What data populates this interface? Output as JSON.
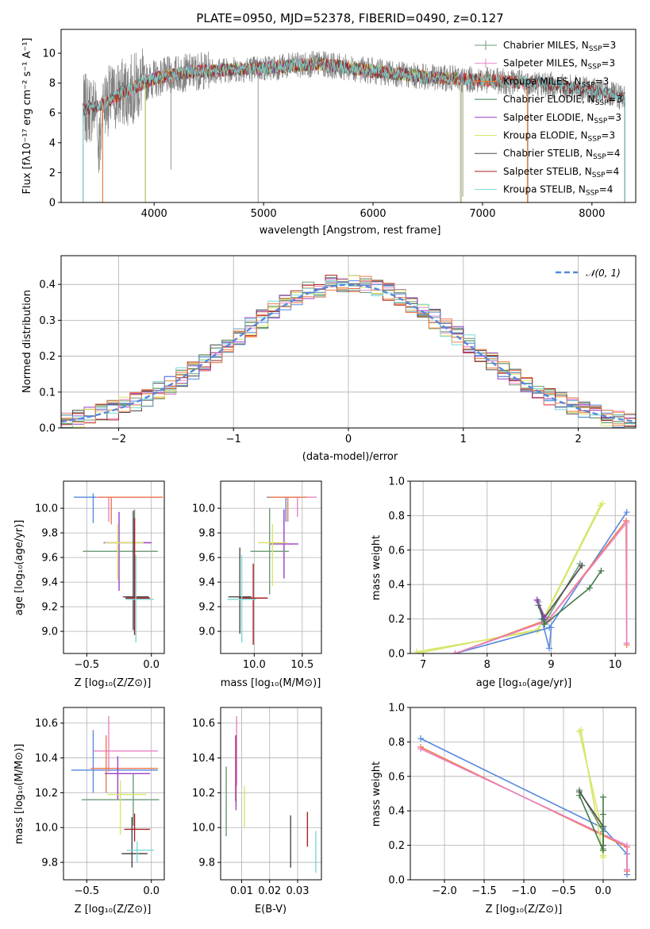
{
  "colors": {
    "chab_miles": "#6d9a76",
    "salp_miles": "#e882c6",
    "krou_miles": "#ef8231",
    "chab_elodie": "#427a48",
    "salp_elodie": "#9a3ec7",
    "krou_elodie": "#d8e56a",
    "chab_stelib": "#4a4a4a",
    "salp_stelib": "#a82020",
    "krou_stelib": "#7ad8d8",
    "blue": "#5588dd",
    "orange": "#ef7a4a",
    "data": "#808080"
  },
  "chart_data": [
    {
      "id": "spectrum",
      "type": "line",
      "title": "PLATE=0950, MJD=52378, FIBERID=0490, z=0.127",
      "xlabel": "wavelength [Angstrom, rest frame]",
      "ylabel": "Flux [fλ10⁻¹⁷ erg cm⁻² s⁻¹ A⁻¹]",
      "xlim": [
        3150,
        8400
      ],
      "ylim": [
        0,
        11.6
      ],
      "xticks": [
        4000,
        5000,
        6000,
        7000,
        8000
      ],
      "yticks": [
        0,
        2,
        4,
        6,
        8,
        10
      ],
      "legend": [
        "Chabrier MILES, N_SSP=3",
        "Salpeter MILES, N_SSP=3",
        "Kroupa MILES, N_SSP=3",
        "Chabrier ELODIE, N_SSP=3",
        "Salpeter ELODIE, N_SSP=3",
        "Kroupa ELODIE, N_SSP=3",
        "Chabrier STELIB, N_SSP=4",
        "Salpeter STELIB, N_SSP=4",
        "Kroupa STELIB, N_SSP=4"
      ],
      "legend_loc": "upper right",
      "continuum": [
        [
          3350,
          6.2
        ],
        [
          3500,
          6.5
        ],
        [
          3600,
          6.9
        ],
        [
          3700,
          7.3
        ],
        [
          3800,
          7.6
        ],
        [
          3900,
          8.0
        ],
        [
          4000,
          8.3
        ],
        [
          4200,
          8.6
        ],
        [
          4400,
          8.8
        ],
        [
          5000,
          9.0
        ],
        [
          5500,
          9.3
        ],
        [
          6000,
          8.8
        ],
        [
          6500,
          8.4
        ],
        [
          7000,
          8.2
        ],
        [
          7500,
          8.0
        ],
        [
          8000,
          7.5
        ],
        [
          8300,
          7.0
        ]
      ]
    },
    {
      "id": "residuals",
      "type": "histogram",
      "xlabel": "(data-model)/error",
      "ylabel": "Normed distribution",
      "xlim": [
        -2.5,
        2.5
      ],
      "ylim": [
        0,
        0.48
      ],
      "xticks": [
        -2,
        -1,
        0,
        1,
        2
      ],
      "yticks": [
        0.0,
        0.1,
        0.2,
        0.3,
        0.4
      ],
      "legend": [
        "𝒩(0, 1)"
      ],
      "legend_loc": "upper right",
      "bin_width": 0.1
    },
    {
      "id": "age_vs_Z",
      "type": "errorbar",
      "xlabel": "Z [log₁₀(Z/Z⊙)]",
      "ylabel": "age  [log₁₀(age/yr)]",
      "xlim": [
        -0.68,
        0.1
      ],
      "ylim": [
        8.82,
        10.22
      ],
      "xticks": [
        -0.5,
        0.0
      ],
      "yticks": [
        9.0,
        9.2,
        9.4,
        9.6,
        9.8,
        10.0
      ],
      "points": [
        {
          "c": "blue",
          "x": -0.45,
          "xe": [
            0.15,
            0.48
          ],
          "y": 10.09,
          "ye": [
            0.21,
            0.03
          ]
        },
        {
          "c": "salp_miles",
          "x": -0.33,
          "xe": [
            0.1,
            0.4
          ],
          "y": 10.09,
          "ye": [
            0.2,
            0.0
          ]
        },
        {
          "c": "orange",
          "x": -0.31,
          "xe": [
            0.1,
            0.4
          ],
          "y": 10.09,
          "ye": [
            0.22,
            0.0
          ]
        },
        {
          "c": "salp_elodie",
          "x": -0.25,
          "xe": [
            0.12,
            0.25
          ],
          "y": 9.72,
          "ye": [
            0.39,
            0.25
          ]
        },
        {
          "c": "chab_miles",
          "x": -0.13,
          "xe": [
            0.4,
            0.18
          ],
          "y": 9.65,
          "ye": [
            0.36,
            0.34
          ]
        },
        {
          "c": "krou_elodie",
          "x": -0.26,
          "xe": [
            0.1,
            0.2
          ],
          "y": 9.72,
          "ye": [
            0.3,
            0.15
          ]
        },
        {
          "c": "chab_stelib",
          "x": -0.14,
          "xe": [
            0.08,
            0.12
          ],
          "y": 9.28,
          "ye": [
            0.27,
            0.7
          ]
        },
        {
          "c": "salp_stelib",
          "x": -0.13,
          "xe": [
            0.07,
            0.12
          ],
          "y": 9.27,
          "ye": [
            0.3,
            0.65
          ]
        },
        {
          "c": "krou_stelib",
          "x": -0.12,
          "xe": [
            0.08,
            0.14
          ],
          "y": 9.26,
          "ye": [
            0.35,
            0.36
          ]
        }
      ]
    },
    {
      "id": "age_vs_mass",
      "type": "errorbar",
      "xlabel": "mass [log₁₀(M/M⊙)]",
      "ylabel": "",
      "xlim": [
        9.65,
        10.7
      ],
      "ylim": [
        8.82,
        10.22
      ],
      "xticks": [
        10.0,
        10.5
      ],
      "yticks": [
        9.0,
        9.2,
        9.4,
        9.6,
        9.8,
        10.0
      ],
      "points": [
        {
          "c": "blue",
          "x": 10.33,
          "xe": [
            0.2,
            0.2
          ],
          "y": 10.09,
          "ye": [
            0.2,
            0.0
          ]
        },
        {
          "c": "salp_miles",
          "x": 10.45,
          "xe": [
            0.2,
            0.2
          ],
          "y": 10.09,
          "ye": [
            0.16,
            0.0
          ]
        },
        {
          "c": "orange",
          "x": 10.35,
          "xe": [
            0.2,
            0.2
          ],
          "y": 10.09,
          "ye": [
            0.2,
            0.0
          ]
        },
        {
          "c": "salp_elodie",
          "x": 10.31,
          "xe": [
            0.15,
            0.15
          ],
          "y": 9.71,
          "ye": [
            0.28,
            0.28
          ]
        },
        {
          "c": "chab_miles",
          "x": 10.16,
          "xe": [
            0.2,
            0.2
          ],
          "y": 9.65,
          "ye": [
            0.35,
            0.35
          ]
        },
        {
          "c": "krou_elodie",
          "x": 10.19,
          "xe": [
            0.15,
            0.15
          ],
          "y": 9.72,
          "ye": [
            0.35,
            0.15
          ]
        },
        {
          "c": "chab_stelib",
          "x": 9.85,
          "xe": [
            0.12,
            0.12
          ],
          "y": 9.28,
          "ye": [
            0.3,
            0.4
          ]
        },
        {
          "c": "salp_stelib",
          "x": 9.99,
          "xe": [
            0.15,
            0.15
          ],
          "y": 9.27,
          "ye": [
            0.38,
            0.28
          ]
        },
        {
          "c": "krou_stelib",
          "x": 9.87,
          "xe": [
            0.15,
            0.15
          ],
          "y": 9.26,
          "ye": [
            0.35,
            0.36
          ]
        }
      ]
    },
    {
      "id": "weight_vs_age",
      "type": "line",
      "xlabel": "age  [log₁₀(age/yr)]",
      "ylabel": "mass weight",
      "xlim": [
        6.8,
        10.32
      ],
      "ylim": [
        0,
        1.0
      ],
      "xticks": [
        7,
        8,
        9,
        10
      ],
      "yticks": [
        0.0,
        0.2,
        0.4,
        0.6,
        0.8,
        1.0
      ],
      "series": [
        {
          "c": "krou_elodie",
          "x": [
            6.9,
            8.78,
            9.77
          ],
          "y": [
            0.01,
            0.13,
            0.86
          ]
        },
        {
          "c": "krou_elodie",
          "x": [
            6.9,
            8.8,
            9.8
          ],
          "y": [
            0.0,
            0.14,
            0.87
          ]
        },
        {
          "c": "blue",
          "x": [
            7.5,
            8.97,
            10.18
          ],
          "y": [
            0.0,
            0.15,
            0.82
          ]
        },
        {
          "c": "blue",
          "x": [
            8.85,
            8.97,
            9.0
          ],
          "y": [
            0.2,
            0.03,
            0.15
          ]
        },
        {
          "c": "orange",
          "x": [
            7.5,
            8.97,
            10.17,
            10.18
          ],
          "y": [
            0.0,
            0.2,
            0.77,
            0.05
          ]
        },
        {
          "c": "salp_miles",
          "x": [
            7.5,
            8.95,
            10.18,
            10.18
          ],
          "y": [
            0.0,
            0.19,
            0.76,
            0.06
          ]
        },
        {
          "c": "chab_miles",
          "x": [
            8.8,
            8.9,
            9.45
          ],
          "y": [
            0.3,
            0.18,
            0.52
          ]
        },
        {
          "c": "chab_stelib",
          "x": [
            8.78,
            8.88,
            9.48
          ],
          "y": [
            0.31,
            0.2,
            0.51
          ]
        },
        {
          "c": "chab_elodie",
          "x": [
            8.8,
            8.9,
            9.6,
            9.78
          ],
          "y": [
            0.28,
            0.17,
            0.38,
            0.48
          ]
        },
        {
          "c": "salp_elodie",
          "x": [
            8.78,
            8.9
          ],
          "y": [
            0.31,
            0.21
          ]
        }
      ]
    },
    {
      "id": "mass_vs_Z",
      "type": "errorbar",
      "xlabel": "Z [log₁₀(Z/Z⊙)]",
      "ylabel": "mass [log₁₀(M/M⊙)]",
      "xlim": [
        -0.68,
        0.1
      ],
      "ylim": [
        9.7,
        10.69
      ],
      "xticks": [
        -0.5,
        0.0
      ],
      "yticks": [
        9.8,
        10.0,
        10.2,
        10.4,
        10.6
      ],
      "points": [
        {
          "c": "blue",
          "x": -0.45,
          "xe": [
            0.17,
            0.5
          ],
          "y": 10.33,
          "ye": [
            0.13,
            0.23
          ]
        },
        {
          "c": "salp_miles",
          "x": -0.33,
          "xe": [
            0.12,
            0.38
          ],
          "y": 10.44,
          "ye": [
            0.12,
            0.2
          ]
        },
        {
          "c": "orange",
          "x": -0.35,
          "xe": [
            0.12,
            0.4
          ],
          "y": 10.34,
          "ye": [
            0.14,
            0.19
          ]
        },
        {
          "c": "salp_elodie",
          "x": -0.26,
          "xe": [
            0.1,
            0.25
          ],
          "y": 10.31,
          "ye": [
            0.15,
            0.1
          ]
        },
        {
          "c": "chab_miles",
          "x": -0.14,
          "xe": [
            0.4,
            0.2
          ],
          "y": 10.16,
          "ye": [
            0.15,
            0.15
          ]
        },
        {
          "c": "krou_elodie",
          "x": -0.24,
          "xe": [
            0.1,
            0.2
          ],
          "y": 10.19,
          "ye": [
            0.23,
            0.08
          ]
        },
        {
          "c": "chab_stelib",
          "x": -0.15,
          "xe": [
            0.08,
            0.12
          ],
          "y": 9.85,
          "ye": [
            0.08,
            0.21
          ]
        },
        {
          "c": "salp_stelib",
          "x": -0.13,
          "xe": [
            0.08,
            0.12
          ],
          "y": 9.99,
          "ye": [
            0.07,
            0.09
          ]
        },
        {
          "c": "krou_stelib",
          "x": -0.11,
          "xe": [
            0.08,
            0.13
          ],
          "y": 9.87,
          "ye": [
            0.07,
            0.05
          ]
        }
      ]
    },
    {
      "id": "mass_vs_ebv",
      "type": "errorbar",
      "xlabel": "E(B-V)",
      "ylabel": "",
      "xlim": [
        0.0025,
        0.0385
      ],
      "ylim": [
        9.7,
        10.69
      ],
      "xticks": [
        0.01,
        0.02,
        0.03
      ],
      "yticks": [
        9.8,
        10.0,
        10.2,
        10.4,
        10.6
      ],
      "points": [
        {
          "c": "chab_miles",
          "x": 0.0045,
          "xe": [
            0,
            0
          ],
          "y": 10.15,
          "ye": [
            0.2,
            0.2
          ]
        },
        {
          "c": "salp_miles",
          "x": 0.0082,
          "xe": [
            0,
            0
          ],
          "y": 10.44,
          "ye": [
            0.2,
            0.2
          ]
        },
        {
          "c": "orange",
          "x": 0.0078,
          "xe": [
            0,
            0
          ],
          "y": 10.34,
          "ye": [
            0.19,
            0.19
          ]
        },
        {
          "c": "salp_elodie",
          "x": 0.008,
          "xe": [
            0,
            0
          ],
          "y": 10.31,
          "ye": [
            0.21,
            0.22
          ]
        },
        {
          "c": "krou_elodie",
          "x": 0.011,
          "xe": [
            0,
            0
          ],
          "y": 10.12,
          "ye": [
            0.12,
            0.12
          ]
        },
        {
          "c": "chab_stelib",
          "x": 0.0275,
          "xe": [
            0,
            0
          ],
          "y": 9.92,
          "ye": [
            0.15,
            0.15
          ]
        },
        {
          "c": "salp_stelib",
          "x": 0.0335,
          "xe": [
            0,
            0
          ],
          "y": 9.99,
          "ye": [
            0.1,
            0.1
          ]
        },
        {
          "c": "krou_stelib",
          "x": 0.0365,
          "xe": [
            0,
            0
          ],
          "y": 9.86,
          "ye": [
            0.12,
            0.12
          ]
        }
      ]
    },
    {
      "id": "weight_vs_Z",
      "type": "line",
      "xlabel": "Z [log₁₀(Z/Z⊙)]",
      "ylabel": "mass weight",
      "xlim": [
        -2.43,
        0.41
      ],
      "ylim": [
        0,
        1.0
      ],
      "xticks": [
        -2.0,
        -1.5,
        -1.0,
        -0.5,
        0.0
      ],
      "yticks": [
        0.0,
        0.2,
        0.4,
        0.6,
        0.8,
        1.0
      ],
      "series": [
        {
          "c": "blue",
          "x": [
            -2.3,
            0.0,
            0.3,
            0.3
          ],
          "y": [
            0.82,
            0.3,
            0.15,
            0.03
          ]
        },
        {
          "c": "orange",
          "x": [
            -2.3,
            0.3,
            0.3
          ],
          "y": [
            0.77,
            0.19,
            0.05
          ]
        },
        {
          "c": "salp_miles",
          "x": [
            -2.3,
            0.3,
            0.3
          ],
          "y": [
            0.76,
            0.2,
            0.06
          ]
        },
        {
          "c": "krou_elodie",
          "x": [
            -0.3,
            0.0,
            0.0
          ],
          "y": [
            0.86,
            0.26,
            0.13
          ]
        },
        {
          "c": "krou_elodie",
          "x": [
            -0.28,
            0.0
          ],
          "y": [
            0.87,
            0.14
          ]
        },
        {
          "c": "chab_miles",
          "x": [
            -0.3,
            0.0,
            0.0
          ],
          "y": [
            0.52,
            0.28,
            0.18
          ]
        },
        {
          "c": "chab_stelib",
          "x": [
            -0.3,
            0.0,
            0.0
          ],
          "y": [
            0.51,
            0.31,
            0.2
          ]
        },
        {
          "c": "chab_elodie",
          "x": [
            -0.3,
            0.0,
            0.0,
            0.0
          ],
          "y": [
            0.49,
            0.17,
            0.38,
            0.48
          ]
        }
      ]
    }
  ]
}
